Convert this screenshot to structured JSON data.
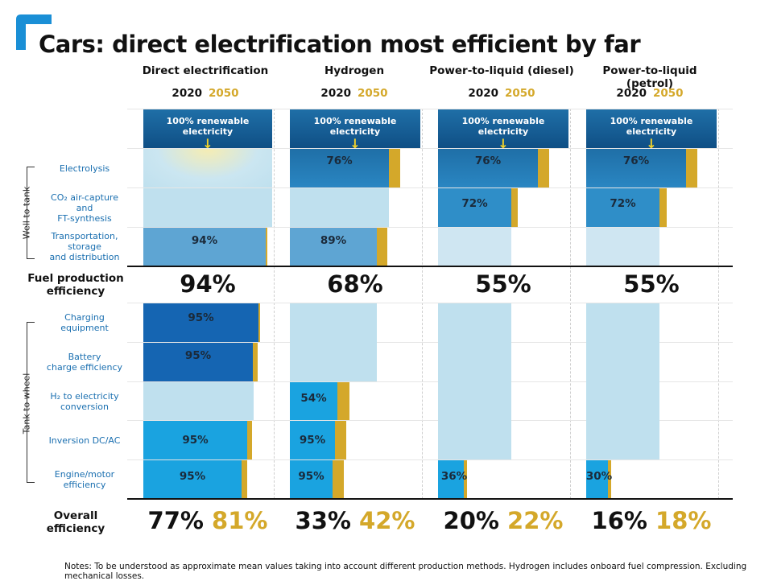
{
  "title": "Cars: direct electrification most efficient by far",
  "year_labels": [
    "2020",
    "2050"
  ],
  "banner_text": "100% renewable electricity",
  "section_labels": {
    "well_to_tank": "Well to tank",
    "tank_to_wheel": "Tank to wheel"
  },
  "row_labels": {
    "electrolysis": "Electrolysis",
    "co2_line1": "CO₂ air-capture and",
    "co2_line2": "FT-synthesis",
    "transport_line1": "Transportation,",
    "transport_line2": "storage",
    "transport_line3": "and distribution",
    "fuel_line1": "Fuel production",
    "fuel_line2": "efficiency",
    "charging_line1": "Charging",
    "charging_line2": "equipment",
    "battery_line1": "Battery",
    "battery_line2": "charge efficiency",
    "h2_line1": "H₂ to electricity",
    "h2_line2": "conversion",
    "inversion": "Inversion DC/AC",
    "engine_line1": "Engine/motor",
    "engine_line2": "efficiency",
    "overall": "Overall efficiency"
  },
  "notes": "Notes: To be understood as approximate mean values taking into account different production methods. Hydrogen includes onboard fuel compression. Excluding mechanical losses.",
  "colors": {
    "gold": "#d4a82a",
    "pale": "#bfe0ee",
    "dark_blue": "#1565b2",
    "mid_blue": "#2f8ec8",
    "light_blue": "#1aa3e0",
    "steel_blue": "#5ea5d3",
    "banner_top": "#1f6fa7",
    "arrow": "#f2d22a"
  },
  "chart_data": {
    "type": "table",
    "columns": [
      {
        "name": "Direct electrification",
        "steps": {
          "electrolysis": "",
          "co2": "",
          "transport": "94%",
          "charging": "95%",
          "battery": "95%",
          "h2": "",
          "inversion": "95%",
          "engine": "95%"
        },
        "fuel_production": "94%",
        "overall_2020": "77%",
        "overall_2050": "81%"
      },
      {
        "name": "Hydrogen",
        "steps": {
          "electrolysis": "76%",
          "co2": "",
          "transport": "89%",
          "charging": "",
          "battery": "",
          "h2": "54%",
          "inversion": "95%",
          "engine": "95%"
        },
        "fuel_production": "68%",
        "overall_2020": "33%",
        "overall_2050": "42%"
      },
      {
        "name": "Power-to-liquid (diesel)",
        "steps": {
          "electrolysis": "76%",
          "co2": "72%",
          "transport": "",
          "charging": "",
          "battery": "",
          "h2": "",
          "inversion": "",
          "engine": "36%"
        },
        "fuel_production": "55%",
        "overall_2020": "20%",
        "overall_2050": "22%"
      },
      {
        "name": "Power-to-liquid (petrol)",
        "steps": {
          "electrolysis": "76%",
          "co2": "72%",
          "transport": "",
          "charging": "",
          "battery": "",
          "h2": "",
          "inversion": "",
          "engine": "30%"
        },
        "fuel_production": "55%",
        "overall_2020": "16%",
        "overall_2050": "18%"
      }
    ]
  }
}
